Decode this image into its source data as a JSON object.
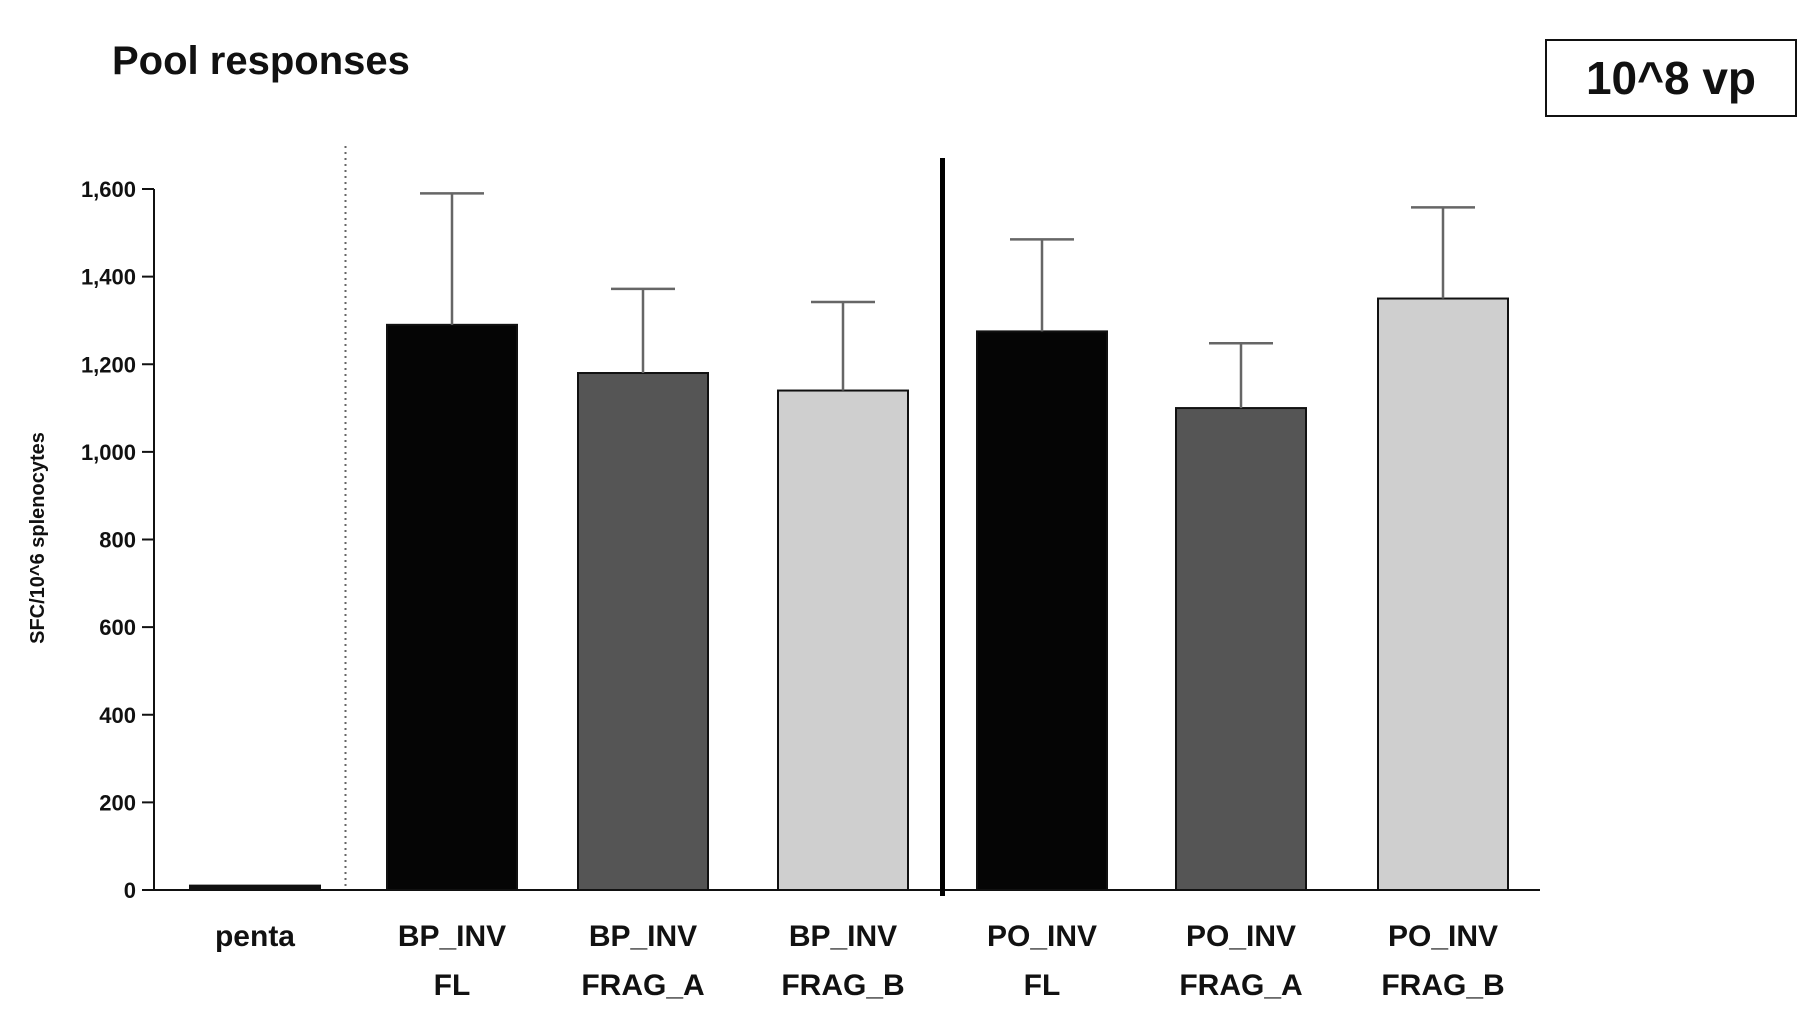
{
  "chart_data": {
    "type": "bar",
    "title": "Pool responses",
    "annotation": "10^8 vp",
    "ylabel": "SFC/10^6 splenocytes",
    "xlabel": "",
    "ylim": [
      0,
      1600
    ],
    "yticks": [
      0,
      200,
      400,
      600,
      800,
      1000,
      1200,
      1400,
      1600
    ],
    "ytick_labels": [
      "0",
      "200",
      "400",
      "600",
      "800",
      "1,000",
      "1,200",
      "1,400",
      "1,600"
    ],
    "grid": false,
    "legend": "none",
    "categories": [
      {
        "line1": "penta",
        "line2": ""
      },
      {
        "line1": "BP_INV",
        "line2": "FL"
      },
      {
        "line1": "BP_INV",
        "line2": "FRAG_A"
      },
      {
        "line1": "BP_INV",
        "line2": "FRAG_B"
      },
      {
        "line1": "PO_INV",
        "line2": "FL"
      },
      {
        "line1": "PO_INV",
        "line2": "FRAG_A"
      },
      {
        "line1": "PO_INV",
        "line2": "FRAG_B"
      }
    ],
    "values": [
      10,
      1290,
      1180,
      1140,
      1275,
      1100,
      1350
    ],
    "error_upper": [
      0,
      1590,
      1372,
      1342,
      1485,
      1248,
      1558
    ],
    "colors": [
      "#111111",
      "#050505",
      "#555555",
      "#cfcfcf",
      "#050505",
      "#555555",
      "#cfcfcf"
    ],
    "separators": [
      {
        "after_category": 0,
        "style": "dotted"
      },
      {
        "after_category": 3,
        "style": "solid"
      }
    ]
  }
}
